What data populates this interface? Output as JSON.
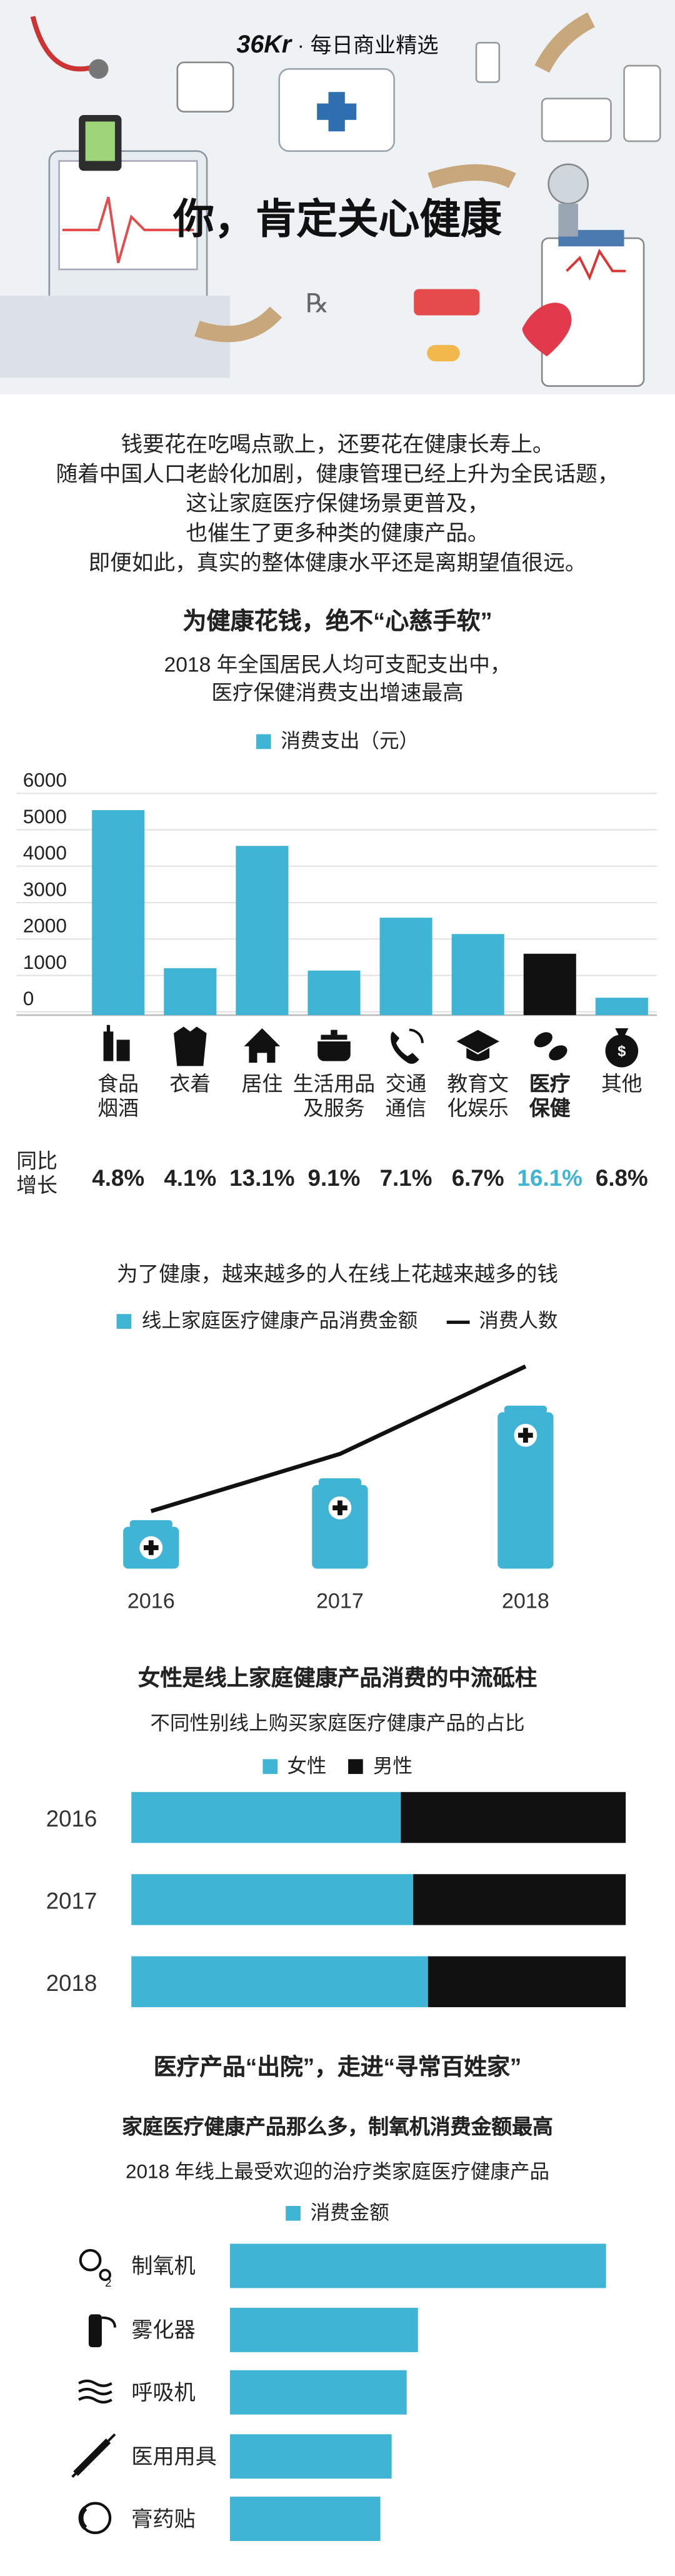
{
  "header": {
    "brand_logo": "36Kr",
    "brand_tagline": "每日商业精选",
    "title": "你，肯定关心健康",
    "rx_mark": "℞"
  },
  "intro": {
    "lines": [
      "钱要花在吃喝点歌上，还要花在健康长寿上。",
      "随着中国人口老龄化加剧，健康管理已经上升为全民话题，",
      "这让家庭医疗保健场景更普及，",
      "也催生了更多种类的健康产品。",
      "即便如此，真实的整体健康水平还是离期望值很远。"
    ]
  },
  "section1": {
    "heading": "为健康花钱，绝不“心慈手软”"
  },
  "colors": {
    "accent": "#3fb4d5",
    "black": "#111111",
    "hero_bg": "#eef2f5"
  },
  "chart_data": [
    {
      "type": "bar",
      "title": "2018 年全国居民人均可支配支出中，\n医疗保健消费支出增速最高",
      "legend": "消费支出（元）",
      "ylim": [
        0,
        6000
      ],
      "yticks": [
        "6000",
        "5000",
        "4000",
        "3000",
        "2000",
        "1000",
        "0"
      ],
      "categories": [
        "食品\n烟酒",
        "衣着",
        "居住",
        "生活用品\n及服务",
        "交通\n通信",
        "教育文\n化娱乐",
        "医疗\n保健",
        "其他"
      ],
      "icons": [
        "food-drink-icon",
        "clothing-icon",
        "house-icon",
        "pot-icon",
        "phone-icon",
        "graduation-cap-icon",
        "pills-icon",
        "money-bag-icon"
      ],
      "values": [
        5631,
        1289,
        4647,
        1223,
        2675,
        2226,
        1685,
        477
      ],
      "highlight_index": 6,
      "growth_label": "同比\n增长",
      "growth": [
        "4.8%",
        "4.1%",
        "13.1%",
        "9.1%",
        "7.1%",
        "6.7%",
        "16.1%",
        "6.8%"
      ]
    },
    {
      "type": "bar",
      "title": "为了健康，越来越多的人在线上花越来越多的钱",
      "series": [
        {
          "name": "线上家庭医疗健康产品消费金额",
          "type": "bar",
          "values": [
            15,
            30,
            56
          ]
        },
        {
          "name": "消费人数",
          "type": "line",
          "values": [
            52,
            69,
            95
          ]
        }
      ],
      "categories": [
        "2016",
        "2017",
        "2018"
      ]
    },
    {
      "type": "bar",
      "stacked": true,
      "heading": "女性是线上家庭健康产品消费的中流砥柱",
      "title": "不同性别线上购买家庭医疗健康产品的占比",
      "categories": [
        "2016",
        "2017",
        "2018"
      ],
      "series": [
        {
          "name": "女性",
          "values": [
            54.5,
            57,
            60
          ]
        },
        {
          "name": "男性",
          "values": [
            45.5,
            43,
            40
          ]
        }
      ]
    },
    {
      "type": "bar",
      "orientation": "horizontal",
      "heading": "医疗产品“出院”，走进“寻常百姓家”",
      "subheading": "家庭医疗健康产品那么多，制氧机消费金额最高",
      "title": "2018 年线上最受欢迎的治疗类家庭医疗健康产品",
      "legend": "消费金额",
      "categories": [
        "制氧机",
        "雾化器",
        "呼吸机",
        "医用用具",
        "膏药贴"
      ],
      "icons": [
        "oxygen-icon",
        "nebulizer-icon",
        "breathing-icon",
        "syringe-icon",
        "patch-icon"
      ],
      "values": [
        100,
        50,
        47,
        43,
        40
      ]
    }
  ]
}
